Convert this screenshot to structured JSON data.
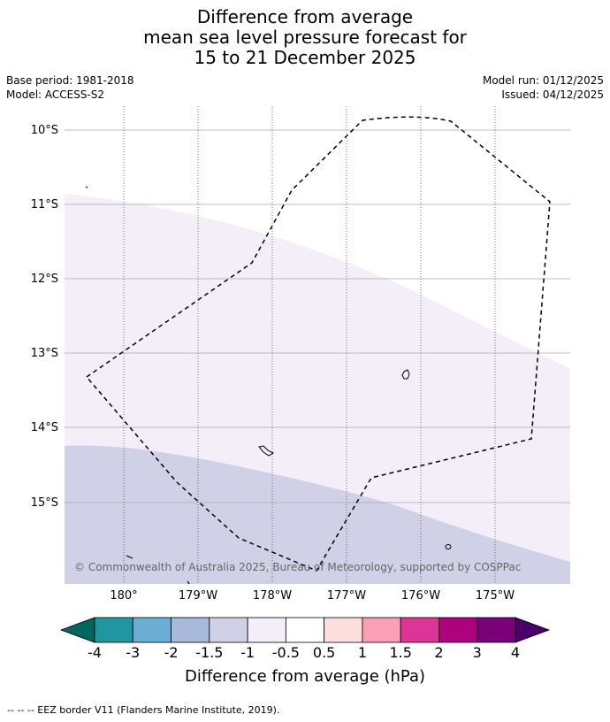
{
  "title_lines": [
    "Difference from average",
    "mean sea level pressure forecast for",
    "15 to 21 December 2025"
  ],
  "meta": {
    "base_period": "Base period: 1981-2018",
    "model": "Model: ACCESS-S2",
    "model_run": "Model run: 01/12/2025",
    "issued": "Issued: 04/12/2025"
  },
  "map": {
    "lat_labels": [
      "10°S",
      "11°S",
      "12°S",
      "13°S",
      "14°S",
      "15°S"
    ],
    "lon_labels": [
      "180°",
      "179°W",
      "178°W",
      "177°W",
      "176°W",
      "175°W"
    ],
    "copyright": "© Commonwealth of Australia 2025, Bureau of Meteorology, supported by COSPPac",
    "fill_colors": {
      "band_m1_m05": "#f3eef7",
      "band_m15_m1": "#d0d1e6"
    }
  },
  "colorbar": {
    "label": "Difference from average (hPa)",
    "ticks": [
      "-4",
      "-3",
      "-2",
      "-1.5",
      "-1",
      "-0.5",
      "0.5",
      "1",
      "1.5",
      "2",
      "3",
      "4"
    ],
    "colors": [
      "#01665e",
      "#2097a0",
      "#6aaed6",
      "#a8b9d9",
      "#d0d1e6",
      "#f3eef7",
      "#ffffff",
      "#fde0dd",
      "#fa9fb5",
      "#dd3497",
      "#ae017e",
      "#7a0177",
      "#49006a"
    ]
  },
  "footer": "--  --  -- EEZ border V11 (Flanders Marine Institute, 2019)."
}
